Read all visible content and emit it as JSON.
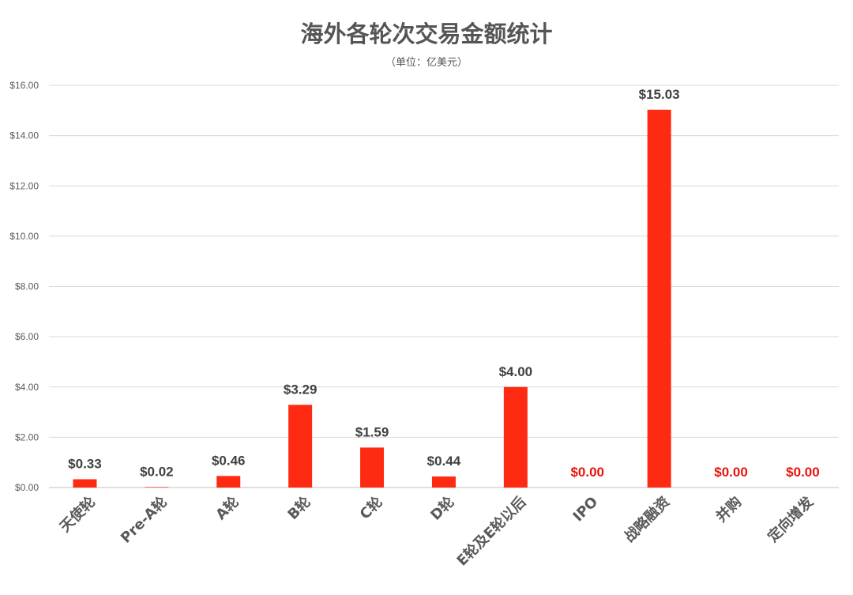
{
  "chart_data": {
    "type": "bar",
    "title": "海外各轮次交易金额统计",
    "subtitle": "（单位：亿美元）",
    "categories": [
      "天使轮",
      "Pre-A轮",
      "A轮",
      "B轮",
      "C轮",
      "D轮",
      "E轮及E轮以后",
      "IPO",
      "战略融资",
      "并购",
      "定向增发"
    ],
    "values": [
      0.33,
      0.02,
      0.46,
      3.29,
      1.59,
      0.44,
      4.0,
      0.0,
      15.03,
      0.0,
      0.0
    ],
    "value_labels": [
      "$0.33",
      "$0.02",
      "$0.46",
      "$3.29",
      "$1.59",
      "$0.44",
      "$4.00",
      "$0.00",
      "$15.03",
      "$0.00",
      "$0.00"
    ],
    "yticks": [
      0,
      2,
      4,
      6,
      8,
      10,
      12,
      14,
      16
    ],
    "ytick_labels": [
      "$0.00",
      "$2.00",
      "$4.00",
      "$6.00",
      "$8.00",
      "$10.00",
      "$12.00",
      "$14.00",
      "$16.00"
    ],
    "ylim": [
      0,
      16
    ],
    "grid": true,
    "legend": "none",
    "bar_color": "#ff2a12",
    "label_color": "#404040",
    "zero_label_color": "#e8140c"
  }
}
